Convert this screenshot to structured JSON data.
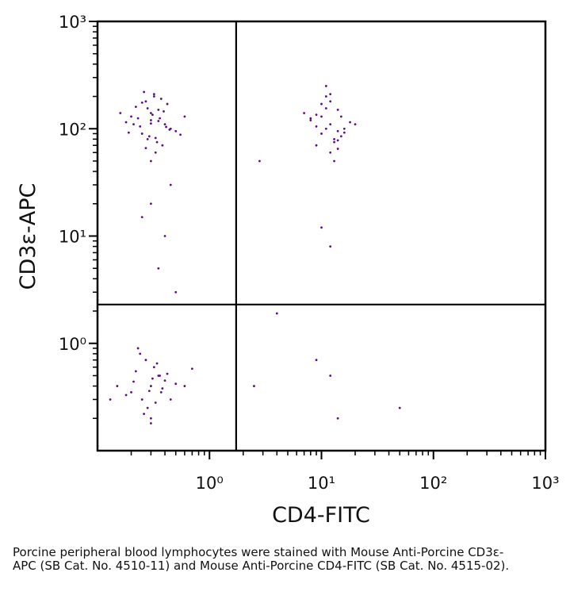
{
  "chart_data": {
    "type": "scatter",
    "xlabel": "CD4-FITC",
    "ylabel": "CD3ε-APC",
    "log_x": true,
    "log_y": true,
    "xlim": [
      0.1,
      1000
    ],
    "ylim": [
      0.1,
      1000
    ],
    "xticks": [
      {
        "value": 1,
        "label": "10⁰"
      },
      {
        "value": 10,
        "label": "10¹"
      },
      {
        "value": 100,
        "label": "10²"
      },
      {
        "value": 1000,
        "label": "10³"
      }
    ],
    "yticks": [
      {
        "value": 1,
        "label": "10⁰"
      },
      {
        "value": 10,
        "label": "10¹"
      },
      {
        "value": 100,
        "label": "10²"
      },
      {
        "value": 1000,
        "label": "10³"
      }
    ],
    "minor_ticks": [
      0.2,
      0.3,
      0.4,
      0.5,
      0.6,
      0.7,
      0.8,
      0.9,
      2,
      3,
      4,
      5,
      6,
      7,
      8,
      9,
      20,
      30,
      40,
      50,
      60,
      70,
      80,
      90,
      200,
      300,
      400,
      500,
      600,
      700,
      800,
      900
    ],
    "quadrant": {
      "x": 1.73,
      "y": 2.3
    },
    "series": [
      {
        "color": "#5b0f80",
        "x": [
          0.3,
          0.25,
          0.35,
          0.4,
          0.2,
          0.28,
          0.32,
          0.45,
          0.22,
          0.38,
          0.3,
          0.27,
          0.5,
          0.18,
          0.33,
          0.36,
          0.24,
          0.42,
          0.29,
          0.31,
          0.26,
          0.34,
          0.39,
          0.21,
          0.55,
          0.16,
          0.3,
          0.37,
          0.23,
          0.44,
          0.28,
          0.35,
          0.6,
          0.19,
          0.32,
          0.27,
          0.41,
          0.25,
          0.33,
          0.3,
          12,
          10,
          14,
          9,
          15,
          11,
          13,
          8,
          16,
          12,
          10,
          14,
          7,
          18,
          11,
          13,
          9,
          15,
          12,
          10,
          14,
          11,
          16,
          8,
          13,
          12,
          20,
          9,
          14,
          11,
          0.3,
          0.25,
          0.35,
          0.2,
          0.4,
          0.28,
          0.32,
          0.15,
          0.45,
          0.22,
          0.38,
          0.3,
          0.27,
          0.5,
          0.18,
          0.33,
          0.36,
          0.24,
          0.6,
          0.29,
          0.31,
          0.26,
          0.34,
          0.13,
          0.42,
          0.21,
          0.3,
          0.37,
          0.7,
          0.23,
          0.3,
          0.4,
          0.35,
          0.5,
          0.25,
          0.45,
          2.8,
          10,
          12,
          4,
          9,
          12,
          50,
          14,
          2.5
        ],
        "y": [
          120,
          90,
          150,
          110,
          130,
          80,
          200,
          100,
          160,
          70,
          140,
          180,
          95,
          115,
          60,
          125,
          105,
          170,
          85,
          135,
          220,
          75,
          145,
          110,
          88,
          140,
          50,
          190,
          125,
          98,
          155,
          118,
          130,
          92,
          210,
          66,
          104,
          175,
          82,
          112,
          110,
          90,
          150,
          70,
          130,
          200,
          80,
          120,
          100,
          60,
          170,
          95,
          140,
          115,
          250,
          75,
          105,
          85,
          180,
          130,
          65,
          155,
          92,
          125,
          50,
          210,
          110,
          135,
          78,
          100,
          0.4,
          0.3,
          0.5,
          0.35,
          0.45,
          0.25,
          0.6,
          0.4,
          0.3,
          0.55,
          0.38,
          0.2,
          0.7,
          0.42,
          0.33,
          0.28,
          0.5,
          0.8,
          0.4,
          0.36,
          0.47,
          0.22,
          0.65,
          0.3,
          0.52,
          0.44,
          0.18,
          0.35,
          0.58,
          0.9,
          20,
          10,
          5,
          3,
          15,
          30,
          50,
          12,
          8,
          1.9,
          0.7,
          0.5,
          0.25,
          0.2,
          0.4
        ]
      }
    ]
  },
  "caption": "Porcine peripheral blood lymphocytes were stained with Mouse Anti-Porcine CD3ε-APC (SB Cat. No. 4510-11) and Mouse Anti-Porcine CD4-FITC (SB Cat. No. 4515-02)."
}
